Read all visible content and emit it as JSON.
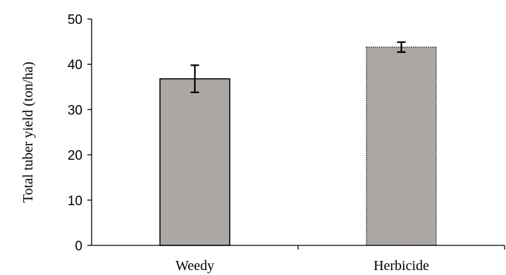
{
  "chart_data": {
    "type": "bar",
    "categories": [
      "Weedy",
      "Herbicide"
    ],
    "values": [
      36.8,
      43.8
    ],
    "error": [
      3.0,
      1.1
    ],
    "xlabel": "",
    "ylabel": "Total tuber yield (ton/ha)",
    "ylim": [
      0,
      50
    ],
    "yticks": [
      0,
      10,
      20,
      30,
      40,
      50
    ],
    "ytick_labels": [
      "0",
      "10",
      "20",
      "30",
      "40",
      "50"
    ],
    "grid": false,
    "bar_colors": [
      "#aba7a5",
      "#aba7a5"
    ],
    "bar_borders": [
      "solid",
      "dotted"
    ]
  }
}
